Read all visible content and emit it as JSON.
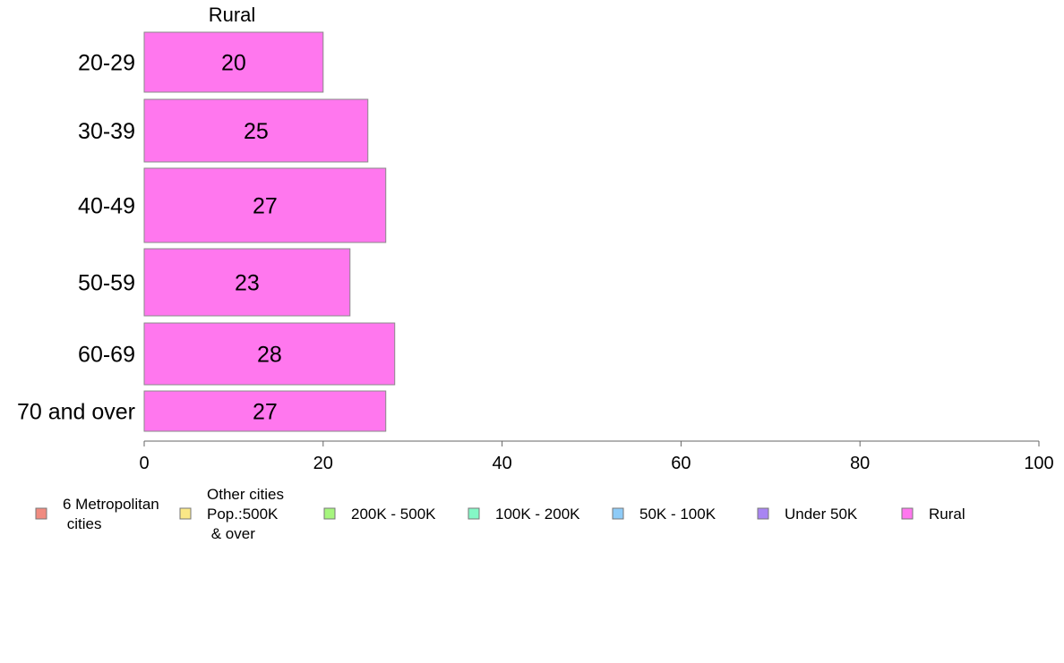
{
  "chart_data": {
    "type": "bar",
    "orientation": "horizontal",
    "title": "Rural",
    "categories": [
      "20-29",
      "30-39",
      "40-49",
      "50-59",
      "60-69",
      "70 and over"
    ],
    "series": [
      {
        "name": "Rural",
        "values": [
          20,
          25,
          27,
          23,
          28,
          27
        ],
        "color": "#ff77ee"
      }
    ],
    "xlim": [
      0,
      100
    ],
    "xticks": [
      0,
      20,
      40,
      60,
      80,
      100
    ],
    "xlabel": "",
    "ylabel": "",
    "grid": false,
    "legend_position": "bottom",
    "legend": [
      {
        "label": "6 Metropolitan\n cities",
        "color": "#f08b80"
      },
      {
        "label": "Other cities\nPop.:500K\n & over",
        "color": "#fae787"
      },
      {
        "label": "200K - 500K",
        "color": "#a6f57e"
      },
      {
        "label": "100K - 200K",
        "color": "#84f7c6"
      },
      {
        "label": "50K - 100K",
        "color": "#8ecbf7"
      },
      {
        "label": "Under 50K",
        "color": "#a885f2"
      },
      {
        "label": "Rural",
        "color": "#ff77ee"
      }
    ]
  }
}
